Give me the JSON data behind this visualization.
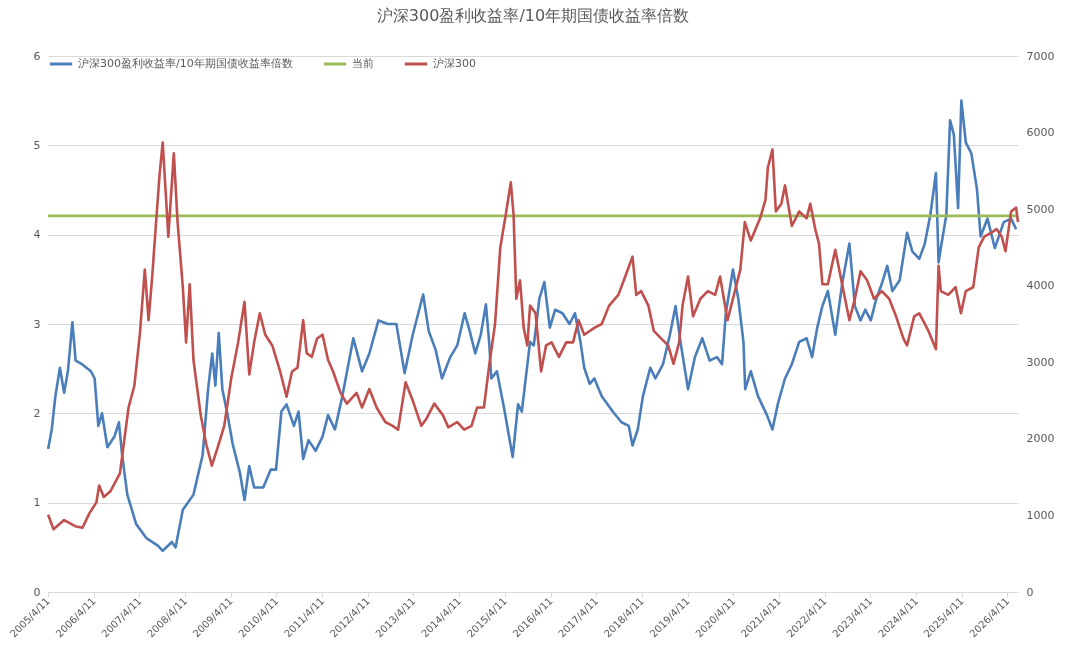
{
  "chart_data": {
    "type": "line",
    "title": "沪深300盈利收益率/10年期国债收益率倍数",
    "legend": "top",
    "grid": "y",
    "xlim": [
      "2005-04-11",
      "2026-07-05"
    ],
    "xticks": [
      {
        "value": "2005-04-11",
        "label": "2005/4/11"
      },
      {
        "value": "2006-04-11",
        "label": "2006/4/11"
      },
      {
        "value": "2007-04-11",
        "label": "2007/4/11"
      },
      {
        "value": "2008-04-11",
        "label": "2008/4/11"
      },
      {
        "value": "2009-04-11",
        "label": "2009/4/11"
      },
      {
        "value": "2010-04-11",
        "label": "2010/4/11"
      },
      {
        "value": "2011-04-11",
        "label": "2011/4/11"
      },
      {
        "value": "2012-04-11",
        "label": "2012/4/11"
      },
      {
        "value": "2013-04-11",
        "label": "2013/4/11"
      },
      {
        "value": "2014-04-11",
        "label": "2014/4/11"
      },
      {
        "value": "2015-04-11",
        "label": "2015/4/11"
      },
      {
        "value": "2016-04-11",
        "label": "2016/4/11"
      },
      {
        "value": "2017-04-11",
        "label": "2017/4/11"
      },
      {
        "value": "2018-04-11",
        "label": "2018/4/11"
      },
      {
        "value": "2019-04-11",
        "label": "2019/4/11"
      },
      {
        "value": "2020-04-11",
        "label": "2020/4/11"
      },
      {
        "value": "2021-04-11",
        "label": "2021/4/11"
      },
      {
        "value": "2022-04-11",
        "label": "2022/4/11"
      },
      {
        "value": "2023-04-11",
        "label": "2023/4/11"
      },
      {
        "value": "2024-04-11",
        "label": "2024/4/11"
      },
      {
        "value": "2025-04-11",
        "label": "2025/4/11"
      },
      {
        "value": "2026-04-11",
        "label": "2026/4/11"
      }
    ],
    "ylim": [
      0,
      6
    ],
    "yticks": [
      0,
      1,
      2,
      3,
      4,
      5,
      6
    ],
    "y2lim": [
      0,
      7000
    ],
    "y2ticks": [
      0,
      1000,
      2000,
      3000,
      4000,
      5000,
      6000,
      7000
    ],
    "series": [
      {
        "name": "沪深300盈利收益率/10年期国债收益率倍数",
        "color": "#4a7ebb",
        "x": [
          "2005-04-12",
          "2005-05-11",
          "2005-06-09",
          "2005-07-15",
          "2005-08-18",
          "2005-09-17",
          "2005-10-23",
          "2005-11-18",
          "2006-01-08",
          "2006-03-20",
          "2006-04-19",
          "2006-05-18",
          "2006-06-17",
          "2006-07-30",
          "2006-09-24",
          "2006-10-30",
          "2006-11-25",
          "2007-01-05",
          "2007-03-17",
          "2007-06-09",
          "2007-09-06",
          "2007-10-15",
          "2007-12-27",
          "2008-01-26",
          "2008-03-24",
          "2008-06-17",
          "2008-08-29",
          "2008-10-12",
          "2008-11-14",
          "2008-12-09",
          "2009-01-05",
          "2009-02-03",
          "2009-03-17",
          "2009-04-26",
          "2009-06-24",
          "2009-07-30",
          "2009-09-06",
          "2009-10-15",
          "2009-12-27",
          "2010-02-25",
          "2010-04-08",
          "2010-05-21",
          "2010-07-01",
          "2010-08-29",
          "2010-10-05",
          "2010-11-11",
          "2010-12-24",
          "2011-02-18",
          "2011-04-15",
          "2011-05-29",
          "2011-07-23",
          "2011-09-20",
          "2011-12-17",
          "2012-02-25",
          "2012-04-23",
          "2012-07-05",
          "2012-09-17",
          "2012-11-25",
          "2013-01-30",
          "2013-04-05",
          "2013-06-27",
          "2013-08-11",
          "2013-10-05",
          "2013-11-25",
          "2014-01-30",
          "2014-03-27",
          "2014-05-25",
          "2014-07-05",
          "2014-08-18",
          "2014-10-01",
          "2014-11-11",
          "2014-12-09",
          "2014-12-24",
          "2015-02-07",
          "2015-04-05",
          "2015-06-13",
          "2015-07-26",
          "2015-08-25",
          "2015-10-30",
          "2015-11-29",
          "2016-01-12",
          "2016-02-21",
          "2016-04-05",
          "2016-05-18",
          "2016-07-15",
          "2016-09-09",
          "2016-10-23",
          "2016-12-06",
          "2017-01-05",
          "2017-02-18",
          "2017-03-27",
          "2017-05-25",
          "2017-08-21",
          "2017-10-30",
          "2017-12-27",
          "2018-01-26",
          "2018-03-09",
          "2018-04-19",
          "2018-06-17",
          "2018-07-28",
          "2018-09-27",
          "2018-11-21",
          "2019-01-05",
          "2019-02-18",
          "2019-04-15",
          "2019-06-09",
          "2019-08-07",
          "2019-10-05",
          "2019-12-02",
          "2020-01-12",
          "2020-02-11",
          "2020-04-08",
          "2020-05-21",
          "2020-07-01",
          "2020-07-15",
          "2020-08-29",
          "2020-10-26",
          "2021-01-05",
          "2021-02-18",
          "2021-04-01",
          "2021-05-29",
          "2021-07-23",
          "2021-09-20",
          "2021-11-18",
          "2022-01-01",
          "2022-02-11",
          "2022-03-24",
          "2022-05-07",
          "2022-07-05",
          "2022-08-29",
          "2022-10-26",
          "2022-12-09",
          "2023-01-23",
          "2023-03-02",
          "2023-04-15",
          "2023-05-29",
          "2023-07-12",
          "2023-08-25",
          "2023-10-05",
          "2023-12-02",
          "2024-01-30",
          "2024-03-13",
          "2024-05-07",
          "2024-06-20",
          "2024-08-03",
          "2024-09-17",
          "2024-10-08",
          "2024-10-26",
          "2024-12-09",
          "2025-01-08",
          "2025-02-07",
          "2025-03-13",
          "2025-04-08",
          "2025-05-14",
          "2025-06-27",
          "2025-08-11",
          "2025-09-09",
          "2025-11-03",
          "2026-01-01",
          "2026-03-13",
          "2026-05-11",
          "2026-06-20"
        ],
        "values": [
          1.6,
          1.82,
          2.19,
          2.51,
          2.23,
          2.47,
          3.02,
          2.59,
          2.55,
          2.47,
          2.39,
          1.86,
          2.0,
          1.62,
          1.74,
          1.9,
          1.53,
          1.09,
          0.76,
          0.6,
          0.52,
          0.46,
          0.56,
          0.5,
          0.92,
          1.09,
          1.53,
          2.27,
          2.67,
          2.31,
          2.9,
          2.27,
          1.98,
          1.66,
          1.33,
          1.03,
          1.41,
          1.17,
          1.17,
          1.37,
          1.37,
          2.02,
          2.1,
          1.86,
          2.02,
          1.49,
          1.7,
          1.58,
          1.74,
          1.98,
          1.82,
          2.19,
          2.84,
          2.47,
          2.67,
          3.04,
          3.0,
          3.0,
          2.45,
          2.88,
          3.33,
          2.92,
          2.71,
          2.39,
          2.63,
          2.76,
          3.12,
          2.92,
          2.67,
          2.88,
          3.22,
          2.76,
          2.39,
          2.47,
          2.06,
          1.51,
          2.1,
          2.02,
          2.8,
          2.76,
          3.28,
          3.47,
          2.96,
          3.16,
          3.12,
          3.0,
          3.12,
          2.8,
          2.51,
          2.33,
          2.39,
          2.19,
          2.02,
          1.9,
          1.86,
          1.64,
          1.82,
          2.19,
          2.51,
          2.39,
          2.55,
          2.88,
          3.2,
          2.76,
          2.27,
          2.63,
          2.84,
          2.59,
          2.63,
          2.55,
          3.12,
          3.61,
          3.28,
          2.8,
          2.27,
          2.47,
          2.19,
          1.98,
          1.82,
          2.1,
          2.39,
          2.55,
          2.8,
          2.84,
          2.63,
          2.96,
          3.2,
          3.37,
          2.88,
          3.45,
          3.9,
          3.2,
          3.04,
          3.16,
          3.04,
          3.28,
          3.45,
          3.65,
          3.37,
          3.49,
          4.02,
          3.81,
          3.73,
          3.9,
          4.22,
          4.69,
          3.69,
          3.85,
          4.22,
          5.28,
          5.12,
          4.3,
          5.5,
          5.03,
          4.91,
          4.51,
          3.98,
          4.18,
          3.85,
          4.14,
          4.18,
          4.06
        ]
      },
      {
        "name": "当前",
        "color": "#9bbb59",
        "x": [
          "2005-04-11",
          "2026-07-05"
        ],
        "values": [
          4.21,
          4.21
        ]
      },
      {
        "name": "沪深300",
        "color": "#c0504d",
        "axis": "y2",
        "x": [
          "2005-04-12",
          "2005-05-25",
          "2005-08-18",
          "2005-11-14",
          "2006-01-12",
          "2006-03-09",
          "2006-05-03",
          "2006-05-25",
          "2006-07-01",
          "2006-08-25",
          "2006-11-07",
          "2007-01-15",
          "2007-03-02",
          "2007-04-15",
          "2007-05-25",
          "2007-06-24",
          "2007-07-23",
          "2007-08-21",
          "2007-09-20",
          "2007-10-15",
          "2007-11-29",
          "2008-01-12",
          "2008-02-11",
          "2008-03-24",
          "2008-04-19",
          "2008-05-18",
          "2008-06-17",
          "2008-08-14",
          "2008-09-27",
          "2008-11-11",
          "2009-01-05",
          "2009-02-18",
          "2009-04-15",
          "2009-06-09",
          "2009-07-30",
          "2009-09-06",
          "2009-10-15",
          "2009-11-29",
          "2010-01-12",
          "2010-03-09",
          "2010-05-11",
          "2010-07-01",
          "2010-08-14",
          "2010-09-27",
          "2010-11-11",
          "2010-12-09",
          "2011-01-19",
          "2011-03-02",
          "2011-04-15",
          "2011-05-29",
          "2011-07-08",
          "2011-09-06",
          "2011-10-26",
          "2012-01-12",
          "2012-02-25",
          "2012-04-23",
          "2012-06-20",
          "2012-08-29",
          "2012-10-26",
          "2012-12-09",
          "2013-02-07",
          "2013-04-05",
          "2013-06-13",
          "2013-07-26",
          "2013-09-24",
          "2013-12-02",
          "2014-01-15",
          "2014-03-27",
          "2014-05-21",
          "2014-07-19",
          "2014-09-02",
          "2014-10-26",
          "2014-12-09",
          "2015-01-23",
          "2015-03-06",
          "2015-04-19",
          "2015-05-29",
          "2015-06-20",
          "2015-07-12",
          "2015-08-11",
          "2015-09-09",
          "2015-10-08",
          "2015-10-30",
          "2015-12-13",
          "2016-01-26",
          "2016-03-06",
          "2016-04-19",
          "2016-06-17",
          "2016-08-14",
          "2016-10-08",
          "2016-11-21",
          "2017-01-05",
          "2017-03-27",
          "2017-05-25",
          "2017-07-23",
          "2017-10-05",
          "2017-11-29",
          "2018-01-26",
          "2018-02-25",
          "2018-04-05",
          "2018-06-02",
          "2018-07-15",
          "2018-09-13",
          "2018-11-07",
          "2018-12-20",
          "2019-02-03",
          "2019-03-02",
          "2019-04-15",
          "2019-05-25",
          "2019-07-23",
          "2019-09-20",
          "2019-11-18",
          "2019-12-27",
          "2020-02-25",
          "2020-04-08",
          "2020-06-06",
          "2020-07-12",
          "2020-08-29",
          "2020-11-11",
          "2020-12-24",
          "2021-01-12",
          "2021-02-18",
          "2021-03-17",
          "2021-04-30",
          "2021-05-29",
          "2021-07-23",
          "2021-09-20",
          "2021-11-18",
          "2021-12-17",
          "2022-01-26",
          "2022-02-25",
          "2022-03-24",
          "2022-05-07",
          "2022-07-05",
          "2022-08-29",
          "2022-10-26",
          "2022-12-09",
          "2023-01-23",
          "2023-03-17",
          "2023-05-11",
          "2023-07-12",
          "2023-09-09",
          "2023-11-03",
          "2024-01-01",
          "2024-01-30",
          "2024-03-27",
          "2024-05-07",
          "2024-07-19",
          "2024-09-17",
          "2024-10-08",
          "2024-10-26",
          "2024-12-24",
          "2025-02-21",
          "2025-04-05",
          "2025-05-14",
          "2025-07-12",
          "2025-08-25",
          "2025-10-08",
          "2025-12-02",
          "2026-01-15",
          "2026-02-25",
          "2026-03-27",
          "2026-05-11",
          "2026-06-20",
          "2026-07-05"
        ],
        "values": [
          1010,
          820,
          940,
          860,
          840,
          1030,
          1170,
          1390,
          1240,
          1320,
          1550,
          2410,
          2690,
          3360,
          4210,
          3550,
          4120,
          4780,
          5450,
          5870,
          4640,
          5730,
          4830,
          3980,
          3260,
          4020,
          3030,
          2310,
          1930,
          1650,
          1930,
          2170,
          2790,
          3260,
          3790,
          2840,
          3260,
          3640,
          3360,
          3220,
          2880,
          2550,
          2880,
          2930,
          3550,
          3120,
          3070,
          3310,
          3360,
          3030,
          2880,
          2600,
          2460,
          2600,
          2410,
          2650,
          2410,
          2220,
          2170,
          2120,
          2740,
          2500,
          2170,
          2270,
          2460,
          2310,
          2150,
          2220,
          2120,
          2170,
          2410,
          2410,
          2980,
          3500,
          4500,
          4930,
          5350,
          4930,
          3830,
          4070,
          3450,
          3220,
          3740,
          3640,
          2880,
          3220,
          3260,
          3070,
          3260,
          3260,
          3550,
          3360,
          3450,
          3500,
          3740,
          3880,
          4120,
          4380,
          3880,
          3930,
          3740,
          3410,
          3310,
          3220,
          2980,
          3260,
          3740,
          4120,
          3600,
          3830,
          3930,
          3880,
          4120,
          3550,
          3830,
          4210,
          4830,
          4590,
          4880,
          5120,
          5540,
          5780,
          4970,
          5070,
          5310,
          4780,
          4970,
          4880,
          5070,
          4740,
          4550,
          4020,
          4020,
          4470,
          4020,
          3550,
          3830,
          4190,
          4070,
          3830,
          3930,
          3830,
          3600,
          3310,
          3220,
          3600,
          3640,
          3410,
          3170,
          4260,
          3930,
          3880,
          3980,
          3640,
          3930,
          3980,
          4500,
          4640,
          4690,
          4740,
          4640,
          4450,
          4970,
          5020,
          4830
        ]
      }
    ]
  }
}
